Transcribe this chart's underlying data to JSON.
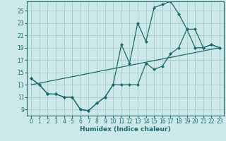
{
  "xlabel": "Humidex (Indice chaleur)",
  "background_color": "#cde8e8",
  "grid_color": "#aacece",
  "line_color": "#1a6b6b",
  "xlim": [
    -0.5,
    23.5
  ],
  "ylim": [
    8.0,
    26.5
  ],
  "yticks": [
    9,
    11,
    13,
    15,
    17,
    19,
    21,
    23,
    25
  ],
  "xticks": [
    0,
    1,
    2,
    3,
    4,
    5,
    6,
    7,
    8,
    9,
    10,
    11,
    12,
    13,
    14,
    15,
    16,
    17,
    18,
    19,
    20,
    21,
    22,
    23
  ],
  "line1_x": [
    0,
    1,
    2,
    3,
    4,
    5,
    6,
    7,
    8,
    9,
    10,
    11,
    12,
    13,
    14,
    15,
    16,
    17,
    18,
    19,
    20,
    21,
    22,
    23
  ],
  "line1_y": [
    14,
    13,
    11.5,
    11.5,
    11,
    11,
    9,
    8.8,
    10,
    11,
    13,
    19.5,
    16.5,
    23,
    20,
    25.5,
    26,
    26.5,
    24.5,
    22,
    19,
    19,
    19.5,
    19
  ],
  "line2_x": [
    0,
    1,
    2,
    3,
    4,
    5,
    6,
    7,
    8,
    9,
    10,
    11,
    12,
    13,
    14,
    15,
    16,
    17,
    18,
    19,
    20,
    21,
    22,
    23
  ],
  "line2_y": [
    14,
    13,
    11.5,
    11.5,
    11,
    11,
    9,
    8.8,
    10,
    11,
    13,
    13,
    13,
    13,
    16.5,
    15.5,
    16,
    18,
    19,
    22,
    22,
    19,
    19.5,
    19
  ],
  "line3_x": [
    0,
    23
  ],
  "line3_y": [
    13,
    19
  ]
}
